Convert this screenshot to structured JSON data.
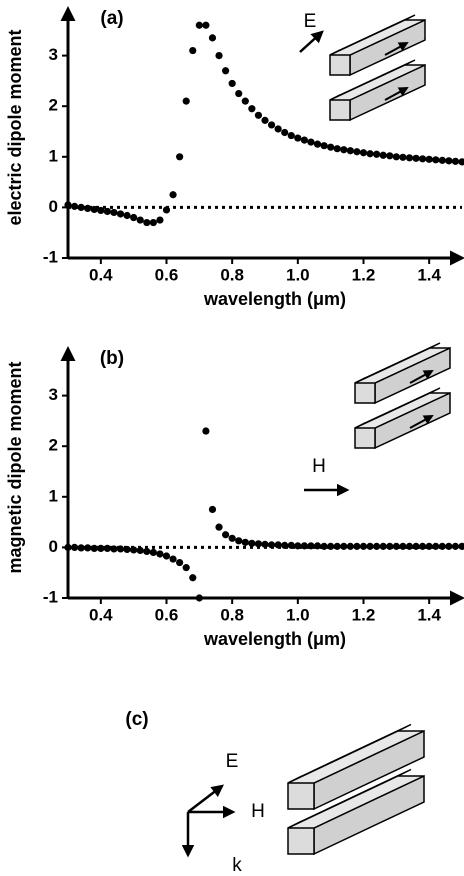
{
  "chart_data": [
    {
      "type": "scatter",
      "label": "(a)",
      "x_label": "wavelength (μm)",
      "y_label": "electric dipole moment",
      "inset_label": "E",
      "color": "#000000",
      "x": [
        0.3,
        0.32,
        0.34,
        0.36,
        0.38,
        0.4,
        0.42,
        0.44,
        0.46,
        0.48,
        0.5,
        0.52,
        0.54,
        0.56,
        0.58,
        0.6,
        0.62,
        0.64,
        0.66,
        0.68,
        0.7,
        0.72,
        0.74,
        0.76,
        0.78,
        0.8,
        0.82,
        0.84,
        0.86,
        0.88,
        0.9,
        0.92,
        0.94,
        0.96,
        0.98,
        1.0,
        1.02,
        1.04,
        1.06,
        1.08,
        1.1,
        1.12,
        1.14,
        1.16,
        1.18,
        1.2,
        1.22,
        1.24,
        1.26,
        1.28,
        1.3,
        1.32,
        1.34,
        1.36,
        1.38,
        1.4,
        1.42,
        1.44,
        1.46,
        1.48,
        1.5
      ],
      "values": [
        0.05,
        0.02,
        0,
        -0.02,
        -0.04,
        -0.06,
        -0.08,
        -0.1,
        -0.13,
        -0.16,
        -0.2,
        -0.25,
        -0.3,
        -0.3,
        -0.25,
        -0.05,
        0.25,
        1.0,
        2.1,
        3.1,
        3.6,
        3.6,
        3.35,
        3.0,
        2.7,
        2.45,
        2.25,
        2.1,
        1.95,
        1.82,
        1.72,
        1.63,
        1.55,
        1.48,
        1.42,
        1.37,
        1.33,
        1.29,
        1.25,
        1.22,
        1.19,
        1.16,
        1.14,
        1.12,
        1.1,
        1.08,
        1.06,
        1.05,
        1.03,
        1.02,
        1.0,
        0.99,
        0.98,
        0.97,
        0.96,
        0.95,
        0.94,
        0.93,
        0.92,
        0.91,
        0.9
      ],
      "hline": 0,
      "xlim": [
        0.3,
        1.5
      ],
      "ylim": [
        -1,
        4
      ],
      "xticks": [
        0.4,
        0.6,
        0.8,
        1.0,
        1.2,
        1.4
      ],
      "yticks": [
        -1,
        0,
        1,
        2,
        3
      ]
    },
    {
      "type": "scatter",
      "label": "(b)",
      "x_label": "wavelength (μm)",
      "y_label": "magnetic dipole moment",
      "inset_label": "H",
      "color": "#000000",
      "x": [
        0.3,
        0.32,
        0.34,
        0.36,
        0.38,
        0.4,
        0.42,
        0.44,
        0.46,
        0.48,
        0.5,
        0.52,
        0.54,
        0.56,
        0.58,
        0.6,
        0.62,
        0.64,
        0.66,
        0.68,
        0.7,
        0.72,
        0.74,
        0.76,
        0.78,
        0.8,
        0.82,
        0.84,
        0.86,
        0.88,
        0.9,
        0.92,
        0.94,
        0.96,
        0.98,
        1.0,
        1.02,
        1.04,
        1.06,
        1.08,
        1.1,
        1.12,
        1.14,
        1.16,
        1.18,
        1.2,
        1.22,
        1.24,
        1.26,
        1.28,
        1.3,
        1.32,
        1.34,
        1.36,
        1.38,
        1.4,
        1.42,
        1.44,
        1.46,
        1.48,
        1.5
      ],
      "values": [
        0,
        0,
        -0.01,
        -0.01,
        -0.02,
        -0.02,
        -0.02,
        -0.03,
        -0.03,
        -0.04,
        -0.05,
        -0.06,
        -0.08,
        -0.1,
        -0.13,
        -0.17,
        -0.23,
        -0.3,
        -0.4,
        -0.6,
        -1.0,
        2.3,
        0.75,
        0.4,
        0.25,
        0.18,
        0.13,
        0.1,
        0.08,
        0.07,
        0.06,
        0.05,
        0.05,
        0.04,
        0.04,
        0.03,
        0.03,
        0.03,
        0.03,
        0.02,
        0.02,
        0.02,
        0.02,
        0.02,
        0.02,
        0.02,
        0.02,
        0.02,
        0.02,
        0.02,
        0.02,
        0.02,
        0.02,
        0.02,
        0.02,
        0.02,
        0.02,
        0.02,
        0.02,
        0.02,
        0.02
      ],
      "hline": 0,
      "xlim": [
        0.3,
        1.5
      ],
      "ylim": [
        -1,
        4
      ],
      "xticks": [
        0.4,
        0.6,
        0.8,
        1.0,
        1.2,
        1.4
      ],
      "yticks": [
        -1,
        0,
        1,
        2,
        3
      ]
    }
  ],
  "diagram": {
    "label": "(c)",
    "axes": [
      "E",
      "H",
      "k"
    ]
  }
}
